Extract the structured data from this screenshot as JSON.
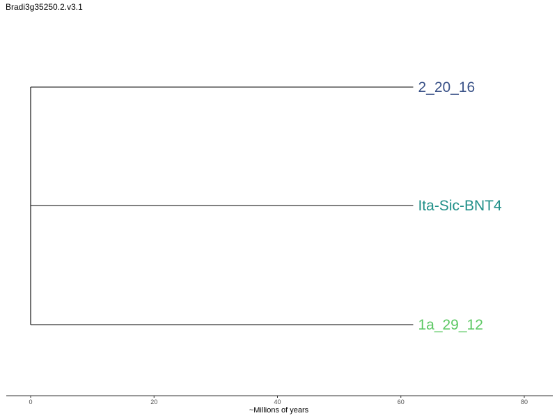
{
  "title": "Bradi3g35250.2.v3.1",
  "tree": {
    "root": "node-1",
    "nodes": [
      {
        "id": "node-1",
        "parent": null,
        "age": 0
      },
      {
        "id": "leaf-1",
        "parent": "node-1",
        "age": 62,
        "label": "2_20_16",
        "color": "#3a5288"
      },
      {
        "id": "leaf-2",
        "parent": "node-1",
        "age": 62,
        "label": "Ita-Sic-BNT4",
        "color": "#1f8f88"
      },
      {
        "id": "leaf-3",
        "parent": "node-1",
        "age": 62,
        "label": "1a_29_12",
        "color": "#5cc863"
      }
    ]
  },
  "axis": {
    "label": "~Millions of years",
    "range": [
      0,
      80
    ],
    "ticks": [
      0,
      20,
      40,
      60,
      80
    ],
    "tick_labels": [
      "0",
      "20",
      "40",
      "60",
      "80"
    ]
  },
  "colors": {
    "branch": "#000000",
    "axis_line": "#333333"
  }
}
